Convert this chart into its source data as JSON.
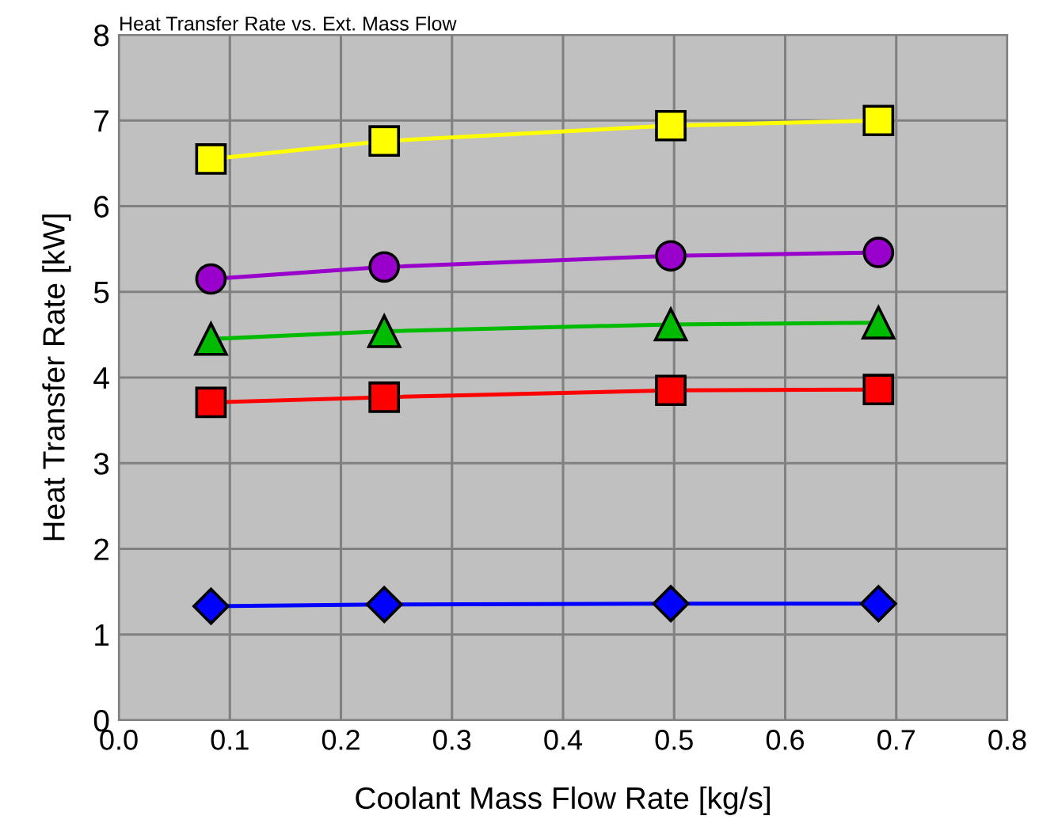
{
  "chart_data": {
    "type": "line",
    "title": "Heat Transfer Rate vs. Ext. Mass Flow",
    "xlabel": "Coolant Mass Flow Rate [kg/s]",
    "ylabel": "Heat Transfer Rate [kW]",
    "x": [
      0.083,
      0.239,
      0.497,
      0.684
    ],
    "series": [
      {
        "color": "#ffff00",
        "marker": "square",
        "values": [
          6.55,
          6.76,
          6.94,
          7.0
        ]
      },
      {
        "color": "#9900cc",
        "marker": "circle",
        "values": [
          5.15,
          5.29,
          5.42,
          5.46
        ]
      },
      {
        "color": "#00bb00",
        "marker": "triangle",
        "values": [
          4.45,
          4.54,
          4.62,
          4.64
        ]
      },
      {
        "color": "#ff0000",
        "marker": "square",
        "values": [
          3.71,
          3.77,
          3.85,
          3.86
        ]
      },
      {
        "color": "#0000ff",
        "marker": "diamond",
        "values": [
          1.33,
          1.35,
          1.36,
          1.36
        ]
      }
    ],
    "xlim": [
      0.0,
      0.8
    ],
    "xticks": [
      {
        "value": 0.0,
        "label": "0.0"
      },
      0.1,
      0.2,
      0.3,
      0.4,
      0.5,
      0.6,
      0.7,
      0.8
    ],
    "ylim": [
      0,
      8
    ],
    "yticks": [
      0,
      1,
      2,
      3,
      4,
      5,
      6,
      7,
      8
    ],
    "grid": true
  }
}
